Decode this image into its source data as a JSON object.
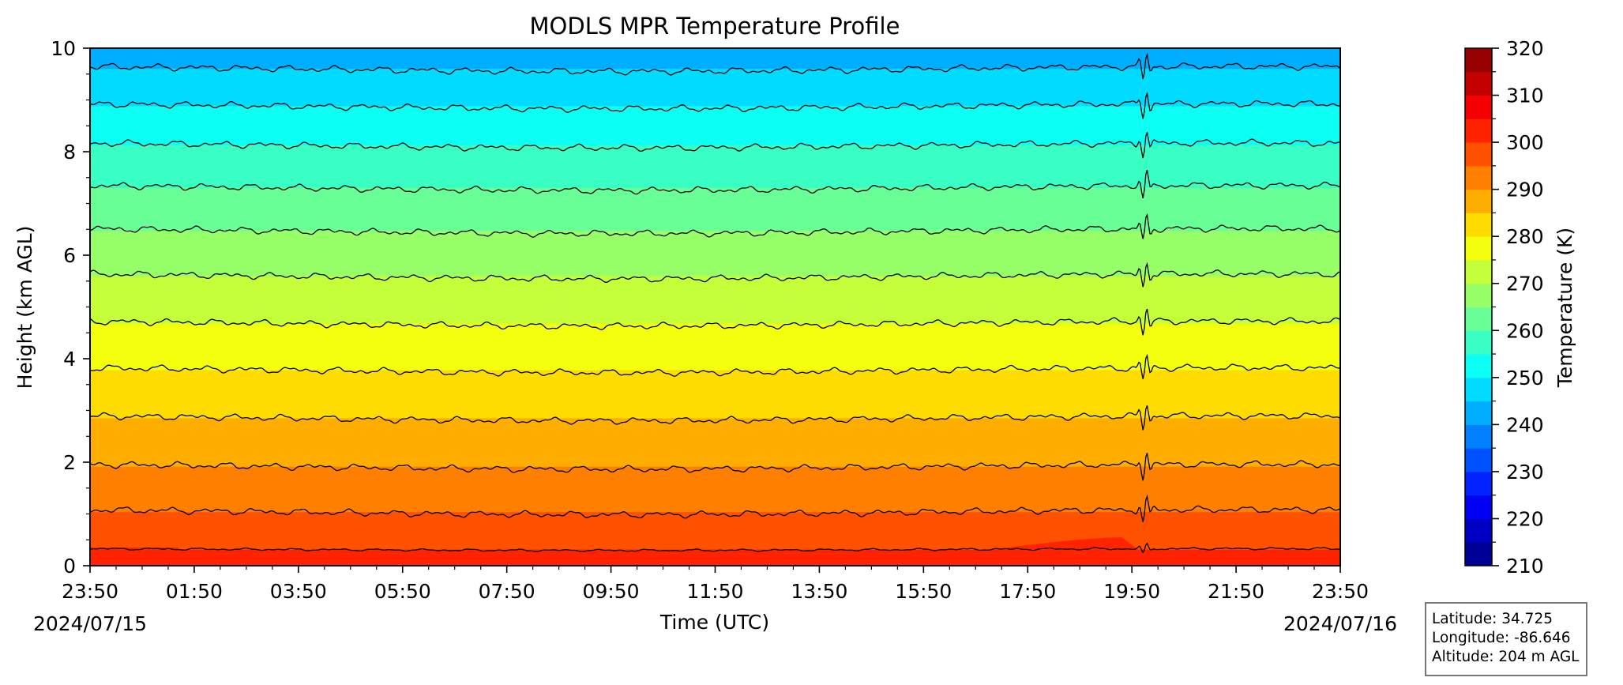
{
  "chart_data": {
    "type": "heatmap",
    "title": "MODLS MPR Temperature Profile",
    "xlabel": "Time (UTC)",
    "ylabel": "Height (km AGL)",
    "colorbar_label": "Temperature (K)",
    "x_tick_labels": [
      "23:50",
      "01:50",
      "03:50",
      "05:50",
      "07:50",
      "09:50",
      "11:50",
      "13:50",
      "15:50",
      "17:50",
      "19:50",
      "21:50",
      "23:50"
    ],
    "x_hours_from_start": [
      0,
      2,
      4,
      6,
      8,
      10,
      12,
      14,
      16,
      18,
      20,
      22,
      24
    ],
    "start_date": "2024/07/15",
    "end_date": "2024/07/16",
    "ylim": [
      0,
      10
    ],
    "y_ticks": [
      0,
      2,
      4,
      6,
      8,
      10
    ],
    "colorbar_range": [
      210,
      320
    ],
    "colorbar_ticks": [
      210,
      220,
      230,
      240,
      250,
      260,
      270,
      280,
      290,
      300,
      310,
      320
    ],
    "contour_levels": [
      230,
      235,
      240,
      245,
      250,
      255,
      260,
      265,
      270,
      275,
      280,
      285,
      290,
      295,
      300
    ],
    "profile_height_km": [
      0,
      0.5,
      1,
      2,
      3,
      4,
      5,
      6,
      7,
      8,
      9,
      10
    ],
    "profile_temperature_k": [
      302.5,
      298.5,
      295.2,
      289.5,
      284.2,
      278.8,
      273.2,
      267.8,
      261.8,
      255.8,
      249.2,
      242.2
    ],
    "colormap": "jet",
    "contour_color": "#000000",
    "grid": false
  },
  "info_box": {
    "latitude": "Latitude: 34.725",
    "longitude": "Longitude: -86.646",
    "altitude": "Altitude: 204 m AGL"
  }
}
